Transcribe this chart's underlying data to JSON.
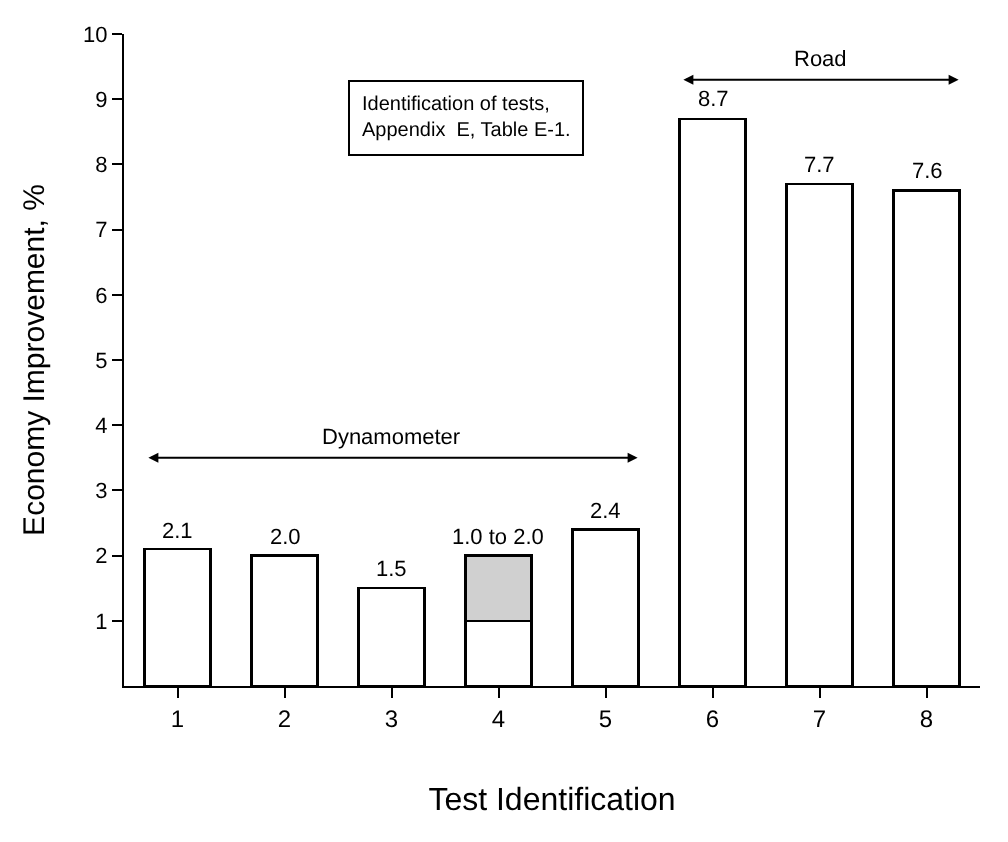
{
  "chart_data": {
    "type": "bar",
    "stacked": true,
    "xlabel": "Test Identification",
    "ylabel": "Economy Improvement, %",
    "categories": [
      "1",
      "2",
      "3",
      "4",
      "5",
      "6",
      "7",
      "8"
    ],
    "series": [
      {
        "color": "#ffffff",
        "values": [
          2.1,
          2.0,
          1.5,
          1.0,
          2.4,
          8.7,
          7.7,
          7.6
        ],
        "value_labels": [
          "2.1",
          "2.0",
          "1.5",
          null,
          "2.4",
          "8.7",
          "7.7",
          "7.6"
        ]
      },
      {
        "color": "#d0d0d0",
        "values": [
          null,
          null,
          null,
          1.0,
          null,
          null,
          null,
          null
        ],
        "value_labels": [
          null,
          null,
          null,
          "1.0 to 2.0",
          null,
          null,
          null,
          null
        ]
      }
    ],
    "ylim": [
      0,
      10
    ],
    "yticks": [
      1,
      2,
      3,
      4,
      5,
      6,
      7,
      8,
      9,
      10
    ],
    "annotations": [
      "Identification of tests,\nAppendix  E, Table E-1.",
      "Dynamometer",
      "Road"
    ]
  }
}
